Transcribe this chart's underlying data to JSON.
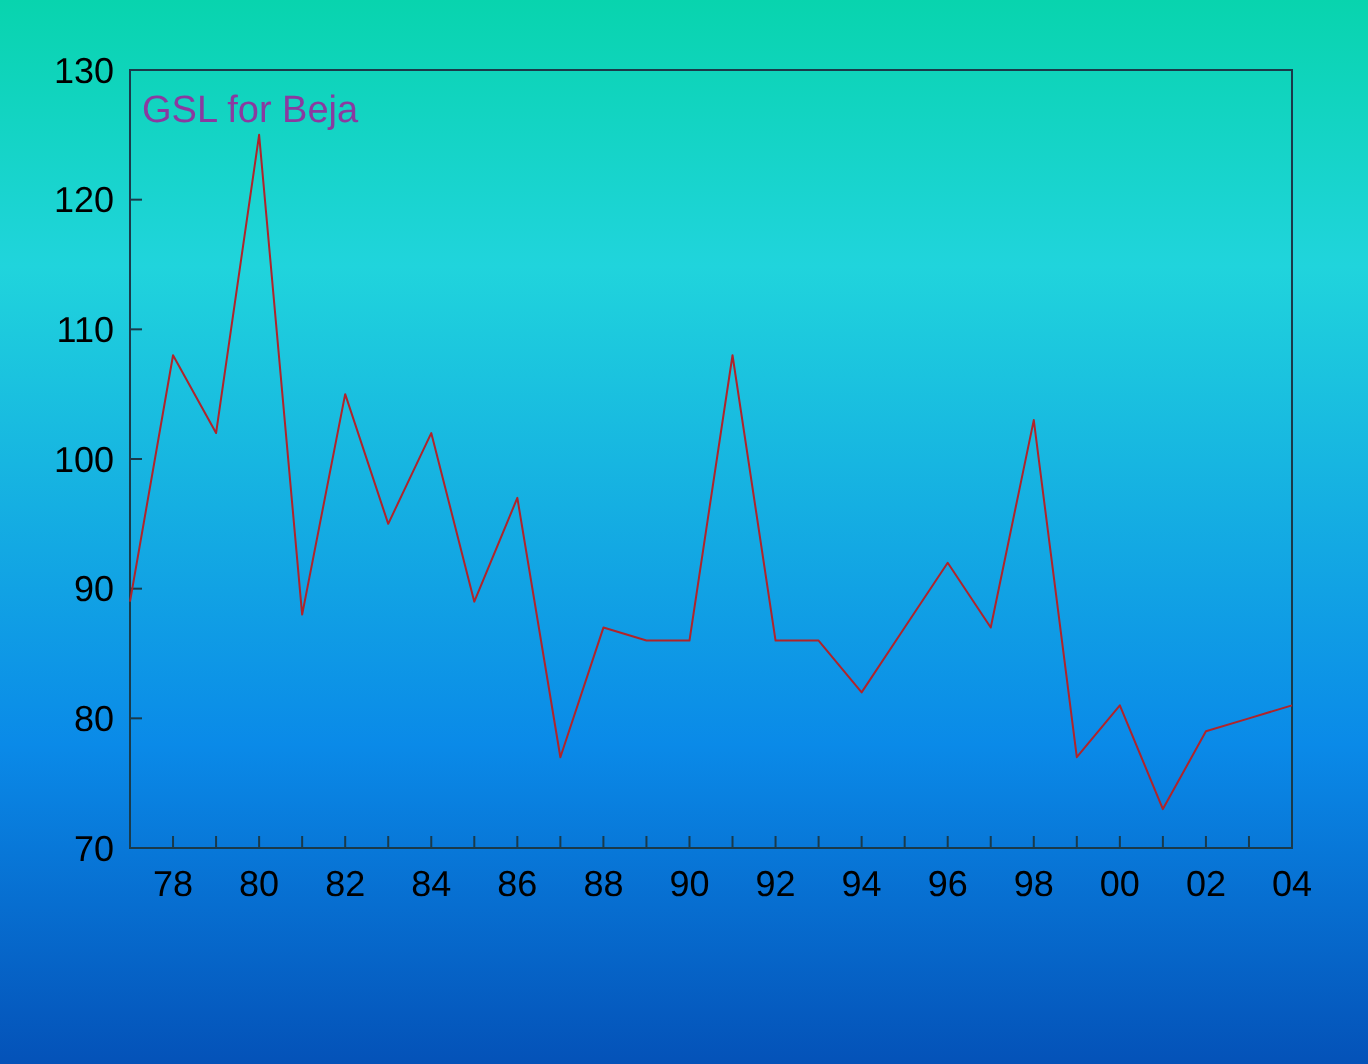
{
  "chart_data": {
    "type": "line",
    "title": "GSL for Beja",
    "x": [
      1977,
      1978,
      1979,
      1980,
      1981,
      1982,
      1983,
      1984,
      1985,
      1986,
      1987,
      1988,
      1989,
      1990,
      1991,
      1992,
      1993,
      1994,
      1995,
      1996,
      1997,
      1998,
      1999,
      2000,
      2001,
      2002,
      2003,
      2004
    ],
    "series": [
      {
        "color": "#b0242a",
        "values": [
          89,
          108,
          102,
          125,
          88,
          105,
          95,
          102,
          89,
          97,
          77,
          87,
          86,
          86,
          108,
          86,
          86,
          82,
          87,
          92,
          87,
          103,
          77,
          81,
          73,
          79,
          80,
          81
        ]
      }
    ],
    "xlim": [
      1977,
      2004
    ],
    "xticks": [
      {
        "value": 1977,
        "label": null
      },
      {
        "value": 1978,
        "label": "78"
      },
      {
        "value": 1979,
        "label": null
      },
      {
        "value": 1980,
        "label": "80"
      },
      {
        "value": 1981,
        "label": null
      },
      {
        "value": 1982,
        "label": "82"
      },
      {
        "value": 1983,
        "label": null
      },
      {
        "value": 1984,
        "label": "84"
      },
      {
        "value": 1985,
        "label": null
      },
      {
        "value": 1986,
        "label": "86"
      },
      {
        "value": 1987,
        "label": null
      },
      {
        "value": 1988,
        "label": "88"
      },
      {
        "value": 1989,
        "label": null
      },
      {
        "value": 1990,
        "label": "90"
      },
      {
        "value": 1991,
        "label": null
      },
      {
        "value": 1992,
        "label": "92"
      },
      {
        "value": 1993,
        "label": null
      },
      {
        "value": 1994,
        "label": "94"
      },
      {
        "value": 1995,
        "label": null
      },
      {
        "value": 1996,
        "label": "96"
      },
      {
        "value": 1997,
        "label": null
      },
      {
        "value": 1998,
        "label": "98"
      },
      {
        "value": 1999,
        "label": null
      },
      {
        "value": 2000,
        "label": "00"
      },
      {
        "value": 2001,
        "label": null
      },
      {
        "value": 2002,
        "label": "02"
      },
      {
        "value": 2003,
        "label": null
      },
      {
        "value": 2004,
        "label": "04"
      }
    ],
    "ylim": [
      70,
      130
    ],
    "yticks": [
      70,
      80,
      90,
      100,
      110,
      120,
      130
    ],
    "grid": false,
    "marker": "none",
    "line_style": "solid"
  }
}
